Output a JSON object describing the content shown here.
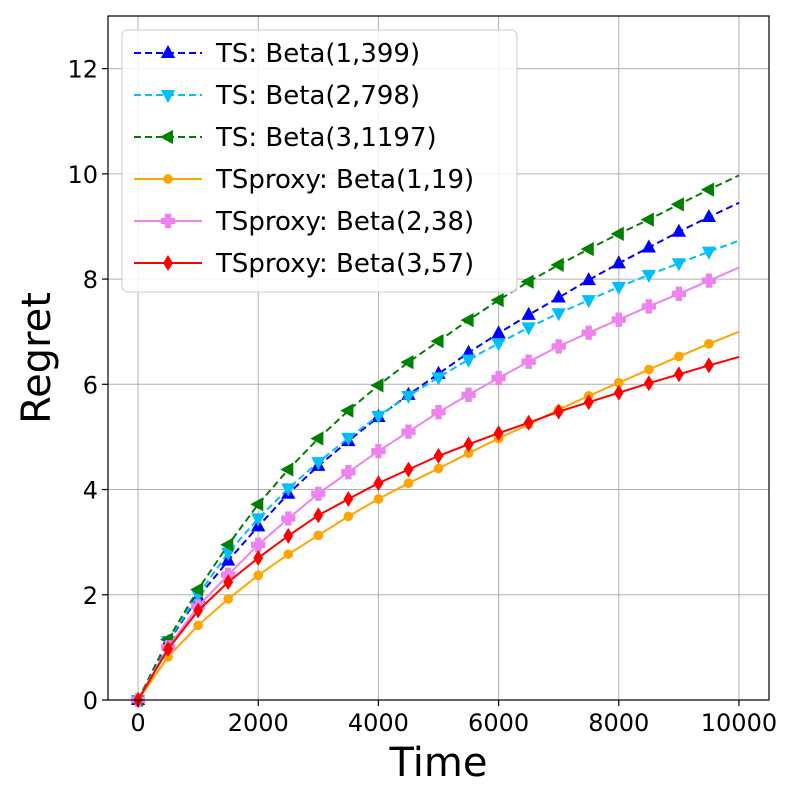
{
  "chart_data": {
    "type": "line",
    "title": "",
    "xlabel": "Time",
    "ylabel": "Regret",
    "xlim": [
      -500,
      10500
    ],
    "ylim": [
      0,
      13
    ],
    "xticks": [
      0,
      2000,
      4000,
      6000,
      8000,
      10000
    ],
    "yticks": [
      0,
      2,
      4,
      6,
      8,
      10,
      12
    ],
    "grid": true,
    "legend_position": "top-left",
    "x": [
      0,
      500,
      1000,
      1500,
      2000,
      2500,
      3000,
      3500,
      4000,
      4500,
      5000,
      5500,
      6000,
      6500,
      7000,
      7500,
      8000,
      8500,
      9000,
      9500
    ],
    "x_end": 10000,
    "series": [
      {
        "name": "TS: Beta(1,399)",
        "color": "#0000ff",
        "dash": "dashed",
        "marker": "triangle-up",
        "values": [
          0,
          1.1,
          1.95,
          2.65,
          3.3,
          3.92,
          4.45,
          4.92,
          5.38,
          5.8,
          6.2,
          6.6,
          6.97,
          7.32,
          7.65,
          7.98,
          8.3,
          8.6,
          8.9,
          9.18
        ],
        "end_value": 9.45
      },
      {
        "name": "TS: Beta(2,798)",
        "color": "#00bfff",
        "dash": "dashed",
        "marker": "triangle-down",
        "values": [
          0,
          1.12,
          2.0,
          2.8,
          3.45,
          4.02,
          4.52,
          4.98,
          5.4,
          5.78,
          6.13,
          6.47,
          6.78,
          7.08,
          7.35,
          7.6,
          7.85,
          8.08,
          8.3,
          8.52
        ],
        "end_value": 8.73
      },
      {
        "name": "TS: Beta(3,1197)",
        "color": "#008000",
        "dash": "dashed",
        "marker": "triangle-left",
        "values": [
          0,
          1.15,
          2.1,
          2.95,
          3.72,
          4.38,
          4.97,
          5.5,
          5.98,
          6.42,
          6.82,
          7.22,
          7.6,
          7.95,
          8.27,
          8.57,
          8.86,
          9.13,
          9.42,
          9.7
        ],
        "end_value": 9.97
      },
      {
        "name": "TSproxy: Beta(1,19)",
        "color": "#ffa500",
        "dash": "solid",
        "marker": "circle",
        "values": [
          0,
          0.82,
          1.42,
          1.92,
          2.37,
          2.77,
          3.13,
          3.49,
          3.82,
          4.12,
          4.4,
          4.69,
          4.97,
          5.24,
          5.52,
          5.78,
          6.03,
          6.28,
          6.53,
          6.77
        ],
        "end_value": 7.0
      },
      {
        "name": "TSproxy: Beta(2,38)",
        "color": "#ee82ee",
        "dash": "solid",
        "marker": "plus",
        "values": [
          0,
          1.0,
          1.78,
          2.38,
          2.95,
          3.45,
          3.92,
          4.33,
          4.73,
          5.1,
          5.47,
          5.8,
          6.12,
          6.43,
          6.72,
          6.98,
          7.23,
          7.48,
          7.72,
          7.97
        ],
        "end_value": 8.22
      },
      {
        "name": "TSproxy: Beta(3,57)",
        "color": "#ff0000",
        "dash": "solid",
        "marker": "diamond",
        "values": [
          0,
          0.97,
          1.7,
          2.24,
          2.7,
          3.12,
          3.51,
          3.82,
          4.12,
          4.38,
          4.64,
          4.86,
          5.07,
          5.27,
          5.48,
          5.66,
          5.84,
          6.02,
          6.19,
          6.36
        ],
        "end_value": 6.52
      }
    ]
  }
}
